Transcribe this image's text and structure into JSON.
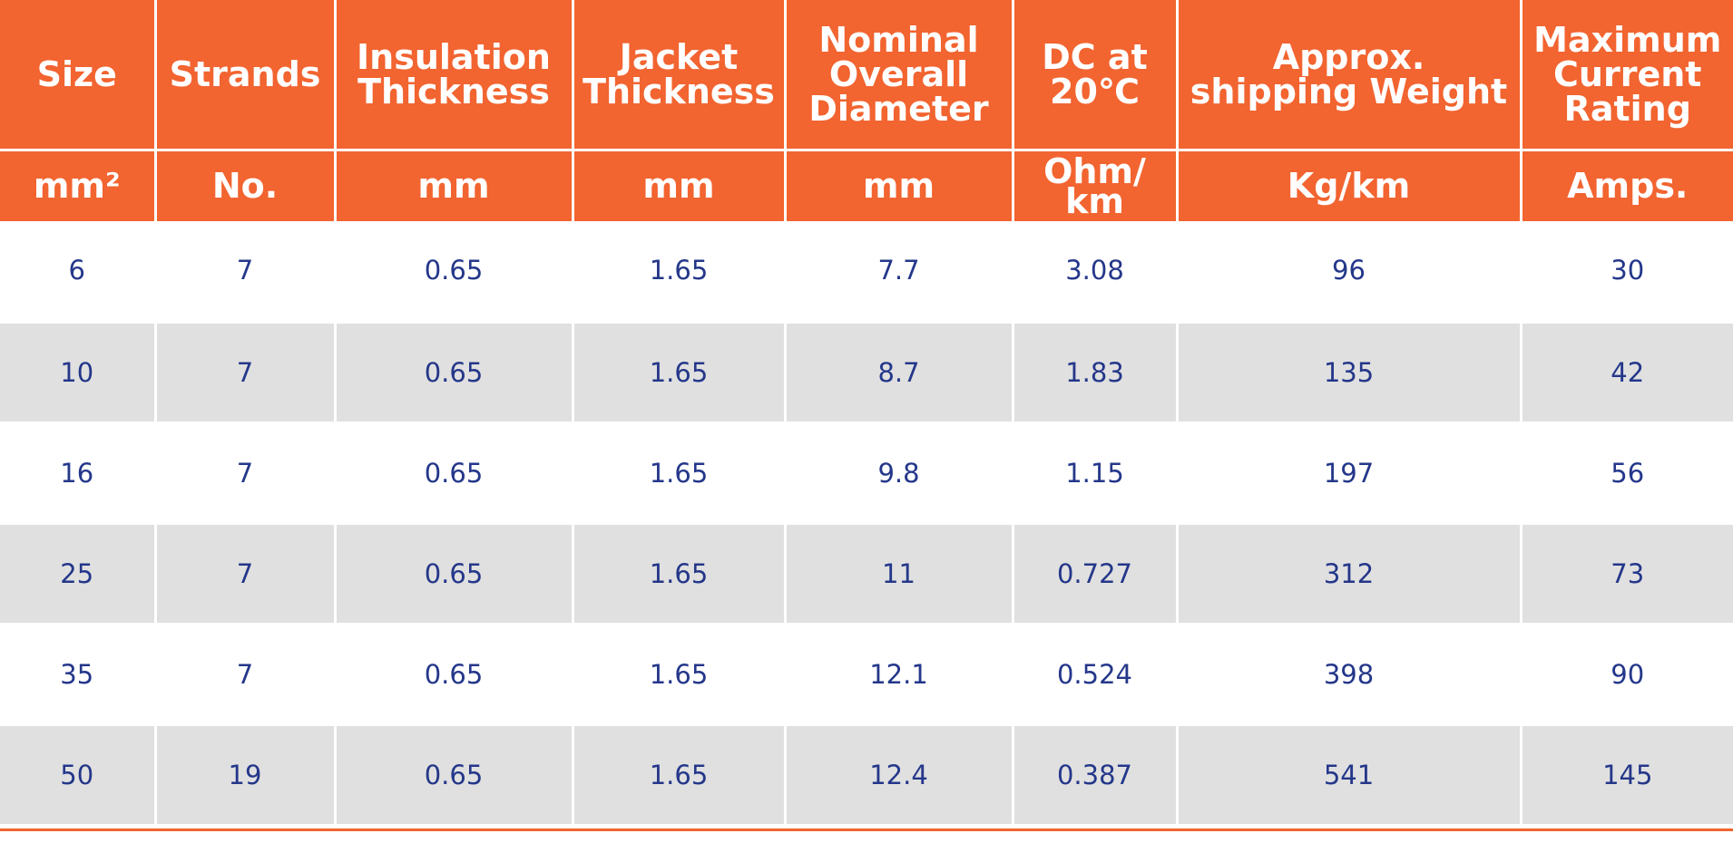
{
  "table": {
    "header": [
      [
        "Size"
      ],
      [
        "Strands"
      ],
      [
        "Insulation",
        "Thickness"
      ],
      [
        "Jacket",
        "Thickness"
      ],
      [
        "Nominal",
        "Overall",
        "Diameter"
      ],
      [
        "DC at",
        "20℃"
      ],
      [
        "Approx.",
        "shipping Weight"
      ],
      [
        "Maximum",
        "Current",
        "Rating"
      ]
    ],
    "units": [
      [
        "mm²"
      ],
      [
        "No."
      ],
      [
        "mm"
      ],
      [
        "mm"
      ],
      [
        "mm"
      ],
      [
        "Ohm/",
        "km"
      ],
      [
        "Kg/km"
      ],
      [
        "Amps."
      ]
    ],
    "rows": [
      [
        "6",
        "7",
        "0.65",
        "1.65",
        "7.7",
        "3.08",
        "96",
        "30"
      ],
      [
        "10",
        "7",
        "0.65",
        "1.65",
        "8.7",
        "1.83",
        "135",
        "42"
      ],
      [
        "16",
        "7",
        "0.65",
        "1.65",
        "9.8",
        "1.15",
        "197",
        "56"
      ],
      [
        "25",
        "7",
        "0.65",
        "1.65",
        "11",
        "0.727",
        "312",
        "73"
      ],
      [
        "35",
        "7",
        "0.65",
        "1.65",
        "12.1",
        "0.524",
        "398",
        "90"
      ],
      [
        "50",
        "19",
        "0.65",
        "1.65",
        "12.4",
        "0.387",
        "541",
        "145"
      ]
    ]
  }
}
